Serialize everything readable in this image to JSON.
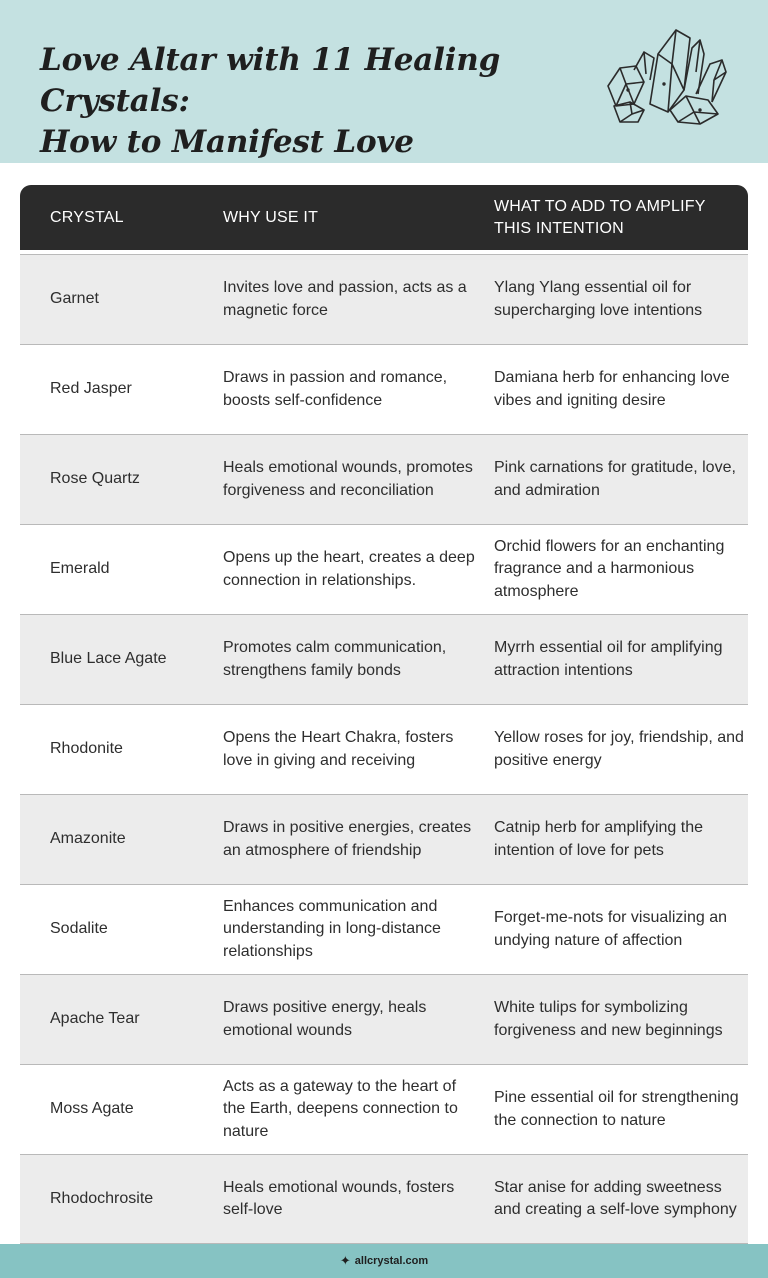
{
  "header": {
    "title_line1": "Love Altar with 11 Healing Crystals:",
    "title_line2": "How to Manifest Love",
    "illustration": "crystal-cluster-icon",
    "background_color": "#c4e1e1"
  },
  "table": {
    "columns": [
      "CRYSTAL",
      "WHY USE IT",
      "WHAT TO ADD TO AMPLIFY THIS INTENTION"
    ],
    "rows": [
      {
        "crystal": "Garnet",
        "why": "Invites love and passion, acts as a magnetic force",
        "add": "Ylang Ylang essential oil for supercharging love intentions"
      },
      {
        "crystal": "Red Jasper",
        "why": "Draws in passion and romance, boosts self-confidence",
        "add": "Damiana herb for enhancing love vibes and igniting desire"
      },
      {
        "crystal": "Rose Quartz",
        "why": "Heals emotional wounds, promotes forgiveness and reconciliation",
        "add": "Pink carnations for gratitude, love, and admiration"
      },
      {
        "crystal": "Emerald",
        "why": "Opens up the heart, creates a deep connection in relationships.",
        "add": "Orchid flowers for an enchanting fragrance and a harmonious atmosphere"
      },
      {
        "crystal": "Blue Lace Agate",
        "why": "Promotes calm communication, strengthens family bonds",
        "add": "Myrrh essential oil for amplifying attraction intentions"
      },
      {
        "crystal": "Rhodonite",
        "why": "Opens the Heart Chakra, fosters love in giving and receiving",
        "add": "Yellow roses for joy, friendship, and positive energy"
      },
      {
        "crystal": "Amazonite",
        "why": "Draws in positive energies, creates an atmosphere of friendship",
        "add": "Catnip herb for amplifying the intention of love for pets"
      },
      {
        "crystal": "Sodalite",
        "why": "Enhances communication and understanding in long-distance relationships",
        "add": "Forget-me-nots for visualizing an undying nature of affection"
      },
      {
        "crystal": "Apache Tear",
        "why": "Draws positive energy, heals emotional wounds",
        "add": "White tulips for symbolizing forgiveness and new beginnings"
      },
      {
        "crystal": "Moss Agate",
        "why": "Acts as a gateway to the heart of the Earth, deepens connection to nature",
        "add": "Pine essential oil for strengthening the connection to nature"
      },
      {
        "crystal": "Rhodochrosite",
        "why": "Heals emotional wounds, fosters self-love",
        "add": "Star anise for adding sweetness and creating a self-love symphony"
      }
    ]
  },
  "footer": {
    "sparkle_icon": "✦",
    "site": "allcrystal.com"
  }
}
